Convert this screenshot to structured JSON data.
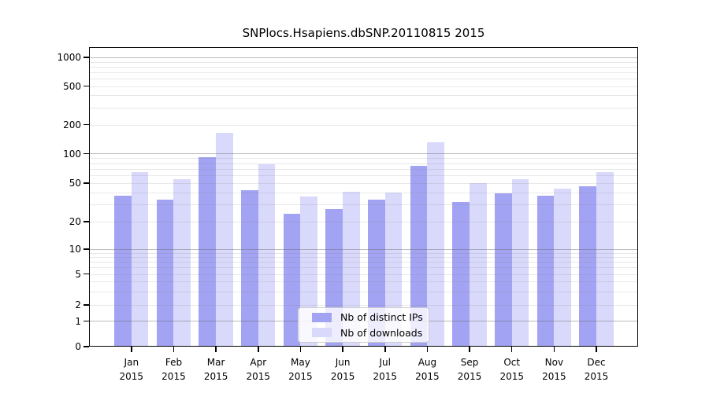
{
  "chart_data": {
    "type": "bar",
    "title": "SNPlocs.Hsapiens.dbSNP.20110815 2015",
    "categories": [
      "Jan",
      "Feb",
      "Mar",
      "Apr",
      "May",
      "Jun",
      "Jul",
      "Aug",
      "Sep",
      "Oct",
      "Nov",
      "Dec"
    ],
    "year_label": "2015",
    "series": [
      {
        "name": "Nb of distinct IPs",
        "color": "#a3a3f3",
        "values": [
          37,
          34,
          92,
          42,
          24,
          27,
          34,
          75,
          32,
          39,
          37,
          46
        ]
      },
      {
        "name": "Nb of downloads",
        "color": "#d9d9fb",
        "values": [
          65,
          55,
          165,
          78,
          36,
          41,
          40,
          132,
          50,
          55,
          44,
          65
        ]
      }
    ],
    "xlabel": "",
    "ylabel": "",
    "y_ticks": [
      0,
      1,
      2,
      5,
      10,
      20,
      50,
      100,
      200,
      500,
      1000
    ],
    "ylim": [
      0,
      1400
    ],
    "yscale": "log-like",
    "grid": true,
    "legend_position": "bottom-center"
  },
  "colors": {
    "grid_major": "rgba(105,105,105,0.45)",
    "grid_minor": "rgba(128,128,128,0.18)",
    "axis": "#000000",
    "background": "#ffffff"
  }
}
